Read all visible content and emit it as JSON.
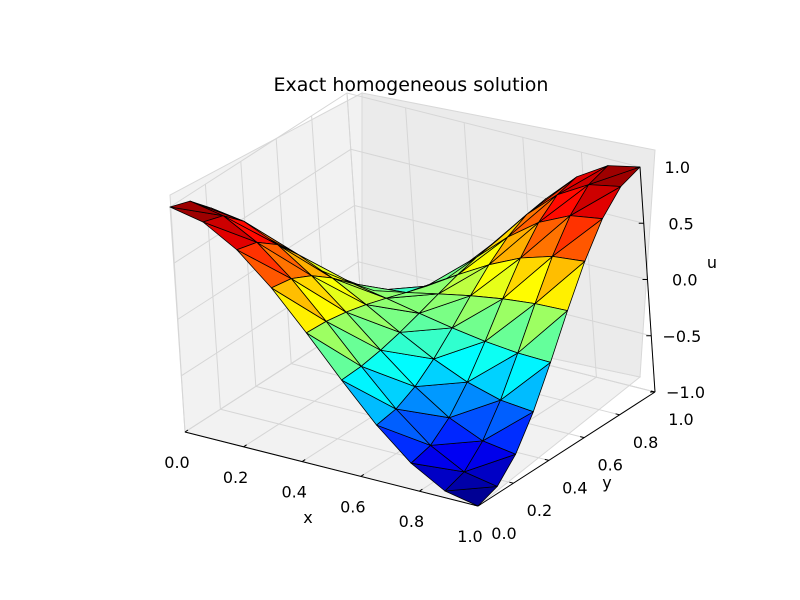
{
  "chart_data": {
    "type": "surface3d",
    "title": "Exact homogeneous solution",
    "xlabel": "x",
    "ylabel": "y",
    "zlabel": "u",
    "xlim": [
      0.0,
      1.0
    ],
    "ylim": [
      0.0,
      1.0
    ],
    "zlim": [
      -1.0,
      1.0
    ],
    "xticks": [
      "0.0",
      "0.2",
      "0.4",
      "0.6",
      "0.8",
      "1.0"
    ],
    "yticks": [
      "0.0",
      "0.2",
      "0.4",
      "0.6",
      "0.8",
      "1.0"
    ],
    "zticks": [
      "−1.0",
      "−0.5",
      "0.0",
      "0.5",
      "1.0"
    ],
    "grid": true,
    "colormap": "jet",
    "mesh": "triangulated grid, 10 × 10 cells",
    "surface": "u = cos(π x) cos(π y)",
    "z_grid": [
      [
        1.0,
        0.9397,
        0.766,
        0.5,
        0.1736,
        -0.1736,
        -0.5,
        -0.766,
        -0.9397,
        -1.0
      ],
      [
        0.9397,
        0.883,
        0.7198,
        0.4698,
        0.1632,
        -0.1632,
        -0.4698,
        -0.7198,
        -0.883,
        -0.9397
      ],
      [
        0.766,
        0.7198,
        0.5868,
        0.383,
        0.133,
        -0.133,
        -0.383,
        -0.5868,
        -0.7198,
        -0.766
      ],
      [
        0.5,
        0.4698,
        0.383,
        0.25,
        0.0868,
        -0.0868,
        -0.25,
        -0.383,
        -0.4698,
        -0.5
      ],
      [
        0.1736,
        0.1632,
        0.133,
        0.0868,
        0.0302,
        -0.0302,
        -0.0868,
        -0.133,
        -0.1632,
        -0.1736
      ],
      [
        -0.1736,
        -0.1632,
        -0.133,
        -0.0868,
        -0.0302,
        0.0302,
        0.0868,
        0.133,
        0.1632,
        0.1736
      ],
      [
        -0.5,
        -0.4698,
        -0.383,
        -0.25,
        -0.0868,
        0.0868,
        0.25,
        0.383,
        0.4698,
        0.5
      ],
      [
        -0.766,
        -0.7198,
        -0.5868,
        -0.383,
        -0.133,
        0.133,
        0.383,
        0.5868,
        0.7198,
        0.766
      ],
      [
        -0.9397,
        -0.883,
        -0.7198,
        -0.4698,
        -0.1632,
        0.1632,
        0.4698,
        0.7198,
        0.883,
        0.9397
      ],
      [
        -1.0,
        -0.9397,
        -0.766,
        -0.5,
        -0.1736,
        0.1736,
        0.5,
        0.766,
        0.9397,
        1.0
      ]
    ]
  }
}
